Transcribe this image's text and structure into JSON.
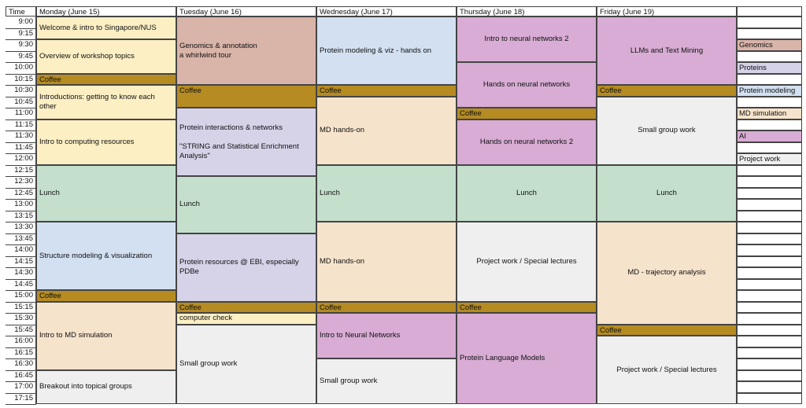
{
  "header": {
    "time_label": "Time",
    "days": [
      "Monday (June 15)",
      "Tuesday (June 16)",
      "Wednesday (June 17)",
      "Thursday (June 18)",
      "Friday (June 19)"
    ]
  },
  "times": [
    "9:00",
    "9:15",
    "9:30",
    "9:45",
    "10:00",
    "10:15",
    "10:30",
    "10:45",
    "11:00",
    "11:15",
    "11:30",
    "11:45",
    "12:00",
    "12:15",
    "12:30",
    "12:45",
    "13:00",
    "13:15",
    "13:30",
    "13:45",
    "14:00",
    "14:15",
    "14:30",
    "14:45",
    "15:00",
    "15:15",
    "15:30",
    "15:45",
    "16:00",
    "16:15",
    "16:30",
    "16:45",
    "17:00",
    "17:15"
  ],
  "colors": {
    "genomics": "#d9b4a8",
    "proteins": "#d6d2e8",
    "protein_modeling": "#d3e0f1",
    "md_simulation": "#f6e3cb",
    "ai": "#d8acd4",
    "project_work": "#efefef",
    "coffee": "#b58b22",
    "intro": "#fcefc4",
    "lunch": "#c4e0cc",
    "blank": "#ffffff"
  },
  "legend": [
    {
      "label": "",
      "cat": "blank"
    },
    {
      "label": "",
      "cat": "blank"
    },
    {
      "label": "Genomics",
      "cat": "genomics"
    },
    {
      "label": "",
      "cat": "blank"
    },
    {
      "label": "Proteins",
      "cat": "proteins"
    },
    {
      "label": "",
      "cat": "blank"
    },
    {
      "label": "Protein modeling",
      "cat": "protein_modeling"
    },
    {
      "label": "",
      "cat": "blank"
    },
    {
      "label": "MD simulation",
      "cat": "md_simulation"
    },
    {
      "label": "",
      "cat": "blank"
    },
    {
      "label": "AI",
      "cat": "ai"
    },
    {
      "label": "",
      "cat": "blank"
    },
    {
      "label": "Project work",
      "cat": "project_work"
    }
  ],
  "schedule": [
    [
      {
        "text": [
          "Welcome & intro to Singapore/NUS"
        ],
        "start": 0,
        "span": 2,
        "cat": "intro"
      },
      {
        "text": [
          "Overview of workshop topics"
        ],
        "start": 2,
        "span": 3,
        "cat": "intro"
      },
      {
        "text": [
          "Coffee"
        ],
        "start": 5,
        "span": 1,
        "cat": "coffee"
      },
      {
        "text": [
          "Introductions: getting to know each other"
        ],
        "start": 6,
        "span": 3,
        "cat": "intro"
      },
      {
        "text": [
          "Intro to computing resources"
        ],
        "start": 9,
        "span": 4,
        "cat": "intro"
      },
      {
        "text": [
          "Lunch"
        ],
        "start": 13,
        "span": 5,
        "cat": "lunch"
      },
      {
        "text": [
          "Structure modeling & visualization"
        ],
        "start": 18,
        "span": 6,
        "cat": "protein_modeling"
      },
      {
        "text": [
          "Coffee"
        ],
        "start": 24,
        "span": 1,
        "cat": "coffee"
      },
      {
        "text": [
          "Intro to MD simulation"
        ],
        "start": 25,
        "span": 6,
        "cat": "md_simulation"
      },
      {
        "text": [
          "Breakout into topical groups"
        ],
        "start": 31,
        "span": 3,
        "cat": "project_work"
      }
    ],
    [
      {
        "text": [
          "Genomics & annotation",
          "a whirlwind tour"
        ],
        "start": 0,
        "span": 6,
        "cat": "genomics"
      },
      {
        "text": [
          "Coffee"
        ],
        "start": 6,
        "span": 2,
        "cat": "coffee"
      },
      {
        "text": [
          "Protein interactions & networks",
          "",
          "\"STRING and Statistical Enrichment Analysis\""
        ],
        "start": 8,
        "span": 6,
        "cat": "proteins"
      },
      {
        "text": [
          "Lunch"
        ],
        "start": 14,
        "span": 5,
        "cat": "lunch"
      },
      {
        "text": [
          "Protein resources @ EBI, especially PDBe"
        ],
        "start": 19,
        "span": 6,
        "cat": "proteins"
      },
      {
        "text": [
          "Coffee"
        ],
        "start": 25,
        "span": 1,
        "cat": "coffee"
      },
      {
        "text": [
          "computer check"
        ],
        "start": 26,
        "span": 1,
        "cat": "intro"
      },
      {
        "text": [
          "Small group work"
        ],
        "start": 27,
        "span": 7,
        "cat": "project_work"
      }
    ],
    [
      {
        "text": [
          "Protein modeling & viz - hands on"
        ],
        "start": 0,
        "span": 6,
        "cat": "protein_modeling"
      },
      {
        "text": [
          "Coffee"
        ],
        "start": 6,
        "span": 1,
        "cat": "coffee"
      },
      {
        "text": [
          "MD hands-on"
        ],
        "start": 7,
        "span": 6,
        "cat": "md_simulation"
      },
      {
        "text": [
          "Lunch"
        ],
        "start": 13,
        "span": 5,
        "cat": "lunch"
      },
      {
        "text": [
          "MD hands-on"
        ],
        "start": 18,
        "span": 7,
        "cat": "md_simulation"
      },
      {
        "text": [
          "Coffee"
        ],
        "start": 25,
        "span": 1,
        "cat": "coffee"
      },
      {
        "text": [
          "Intro to Neural Networks"
        ],
        "start": 26,
        "span": 4,
        "cat": "ai"
      },
      {
        "text": [
          "Small group work"
        ],
        "start": 30,
        "span": 4,
        "cat": "project_work"
      }
    ],
    [
      {
        "text": [
          "Intro to neural networks 2"
        ],
        "start": 0,
        "span": 4,
        "cat": "ai",
        "center": true
      },
      {
        "text": [
          "Hands on neural networks"
        ],
        "start": 4,
        "span": 4,
        "cat": "ai",
        "center": true
      },
      {
        "text": [
          "Coffee"
        ],
        "start": 8,
        "span": 1,
        "cat": "coffee"
      },
      {
        "text": [
          "Hands on neural networks 2"
        ],
        "start": 9,
        "span": 4,
        "cat": "ai",
        "center": true
      },
      {
        "text": [
          "Lunch"
        ],
        "start": 13,
        "span": 5,
        "cat": "lunch",
        "center": true
      },
      {
        "text": [
          "Project work / Special lectures"
        ],
        "start": 18,
        "span": 7,
        "cat": "project_work",
        "center": true
      },
      {
        "text": [
          "Coffee"
        ],
        "start": 25,
        "span": 1,
        "cat": "coffee"
      },
      {
        "text": [
          "Protein Language Models"
        ],
        "start": 26,
        "span": 8,
        "cat": "ai"
      }
    ],
    [
      {
        "text": [
          "LLMs and Text Mining"
        ],
        "start": 0,
        "span": 6,
        "cat": "ai",
        "center": true
      },
      {
        "text": [
          "Coffee"
        ],
        "start": 6,
        "span": 1,
        "cat": "coffee"
      },
      {
        "text": [
          "Small group work"
        ],
        "start": 7,
        "span": 6,
        "cat": "project_work",
        "center": true
      },
      {
        "text": [
          "Lunch"
        ],
        "start": 13,
        "span": 5,
        "cat": "lunch",
        "center": true
      },
      {
        "text": [
          "MD - trajectory analysis"
        ],
        "start": 18,
        "span": 9,
        "cat": "md_simulation",
        "center": true
      },
      {
        "text": [
          "Coffee"
        ],
        "start": 27,
        "span": 1,
        "cat": "coffee"
      },
      {
        "text": [
          "Project work / Special lectures"
        ],
        "start": 28,
        "span": 6,
        "cat": "project_work",
        "center": true
      }
    ]
  ]
}
